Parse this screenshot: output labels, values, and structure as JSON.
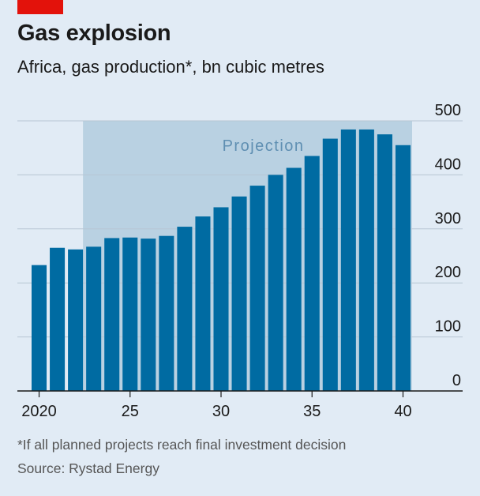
{
  "header": {
    "title": "Gas explosion",
    "subtitle": "Africa, gas production*, bn cubic metres"
  },
  "footer": {
    "footnote": "*If all planned projects reach final investment decision",
    "source": "Source: Rystad Energy"
  },
  "colors": {
    "background": "#e1ebf5",
    "bar": "#006ba2",
    "projection_band": "#b9d1e2",
    "projection_label": "#5f8fb2",
    "grid": "#b7c6d4",
    "accent": "#e3120b"
  },
  "chart_data": {
    "type": "bar",
    "categories": [
      "2020",
      "2021",
      "2022",
      "2023",
      "2024",
      "2025",
      "2026",
      "2027",
      "2028",
      "2029",
      "2030",
      "2031",
      "2032",
      "2033",
      "2034",
      "2035",
      "2036",
      "2037",
      "2038",
      "2039",
      "2040"
    ],
    "values": [
      233,
      265,
      262,
      267,
      283,
      284,
      282,
      287,
      304,
      323,
      340,
      360,
      380,
      400,
      413,
      435,
      467,
      484,
      484,
      475,
      455
    ],
    "ylim": [
      0,
      500
    ],
    "yticks": [
      0,
      100,
      200,
      300,
      400,
      500
    ],
    "xticks": [
      {
        "year": 2020,
        "label": "2020"
      },
      {
        "year": 2025,
        "label": "25"
      },
      {
        "year": 2030,
        "label": "30"
      },
      {
        "year": 2035,
        "label": "35"
      },
      {
        "year": 2040,
        "label": "40"
      }
    ],
    "projection": {
      "label": "Projection",
      "from": 2023,
      "to": 2040
    },
    "grid": true,
    "y_axis_side": "right"
  }
}
